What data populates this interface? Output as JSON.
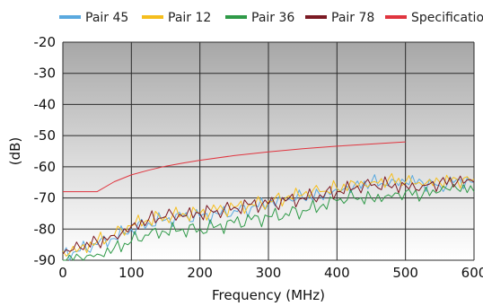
{
  "chart_data": {
    "type": "line",
    "title": "",
    "xlabel": "Frequency (MHz)",
    "ylabel": "(dB)",
    "xlim": [
      0,
      600
    ],
    "ylim": [
      -90,
      -20
    ],
    "xticks": [
      0,
      100,
      200,
      300,
      400,
      500,
      600
    ],
    "yticks": [
      -20,
      -30,
      -40,
      -50,
      -60,
      -70,
      -80,
      -90
    ],
    "xtick_labels": [
      "0",
      "100",
      "200",
      "300",
      "400",
      "500",
      "600"
    ],
    "ytick_labels": [
      "-20",
      "-30",
      "-40",
      "-50",
      "-60",
      "-70",
      "-80",
      "-90"
    ],
    "grid": true,
    "legend_position": "top",
    "background": "vertical gradient, grey at top fading to white at bottom",
    "series": [
      {
        "name": "Pair 45",
        "color": "#5aa9df",
        "x": [
          0,
          25,
          50,
          75,
          100,
          125,
          150,
          175,
          200,
          225,
          250,
          275,
          300,
          325,
          350,
          375,
          400,
          425,
          450,
          475,
          500,
          525,
          550,
          575,
          600
        ],
        "values": [
          -88,
          -87,
          -85,
          -83,
          -80,
          -78,
          -77,
          -76,
          -76,
          -75,
          -74,
          -73,
          -72,
          -71,
          -70,
          -69,
          -67,
          -66,
          -65,
          -66,
          -65,
          -65,
          -66,
          -64,
          -65
        ]
      },
      {
        "name": "Pair 12",
        "color": "#f5be1e",
        "x": [
          0,
          25,
          50,
          75,
          100,
          125,
          150,
          175,
          200,
          225,
          250,
          275,
          300,
          325,
          350,
          375,
          400,
          425,
          450,
          475,
          500,
          525,
          550,
          575,
          600
        ],
        "values": [
          -87,
          -86,
          -84,
          -82,
          -79,
          -77,
          -76,
          -75,
          -75,
          -74,
          -73,
          -72,
          -71,
          -70,
          -69,
          -68,
          -67,
          -65,
          -65,
          -64,
          -65,
          -66,
          -65,
          -64,
          -64
        ]
      },
      {
        "name": "Pair 36",
        "color": "#2f9a48",
        "x": [
          0,
          25,
          50,
          75,
          100,
          125,
          150,
          175,
          200,
          225,
          250,
          275,
          300,
          325,
          350,
          375,
          400,
          425,
          450,
          475,
          500,
          525,
          550,
          575,
          600
        ],
        "values": [
          -90,
          -89,
          -88,
          -86,
          -84,
          -82,
          -81,
          -80,
          -80,
          -79,
          -78,
          -77,
          -76,
          -75,
          -74,
          -73,
          -71,
          -70,
          -70,
          -69,
          -68,
          -69,
          -68,
          -67,
          -68
        ]
      },
      {
        "name": "Pair 78",
        "color": "#7b1a24",
        "x": [
          0,
          25,
          50,
          75,
          100,
          125,
          150,
          175,
          200,
          225,
          250,
          275,
          300,
          325,
          350,
          375,
          400,
          425,
          450,
          475,
          500,
          525,
          550,
          575,
          600
        ],
        "values": [
          -88,
          -86,
          -84,
          -82,
          -79,
          -77,
          -76,
          -76,
          -75,
          -74,
          -73,
          -72,
          -72,
          -71,
          -70,
          -69,
          -68,
          -67,
          -66,
          -66,
          -66,
          -66,
          -65,
          -65,
          -65
        ]
      },
      {
        "name": "Specification",
        "color": "#e0353f",
        "x": [
          0,
          50,
          75,
          100,
          125,
          150,
          175,
          200,
          250,
          300,
          350,
          400,
          450,
          500
        ],
        "values": [
          -68,
          -68,
          -64.8,
          -62.6,
          -61.1,
          -59.8,
          -58.8,
          -57.9,
          -56.4,
          -55.2,
          -54.2,
          -53.4,
          -52.7,
          -52
        ]
      }
    ]
  }
}
